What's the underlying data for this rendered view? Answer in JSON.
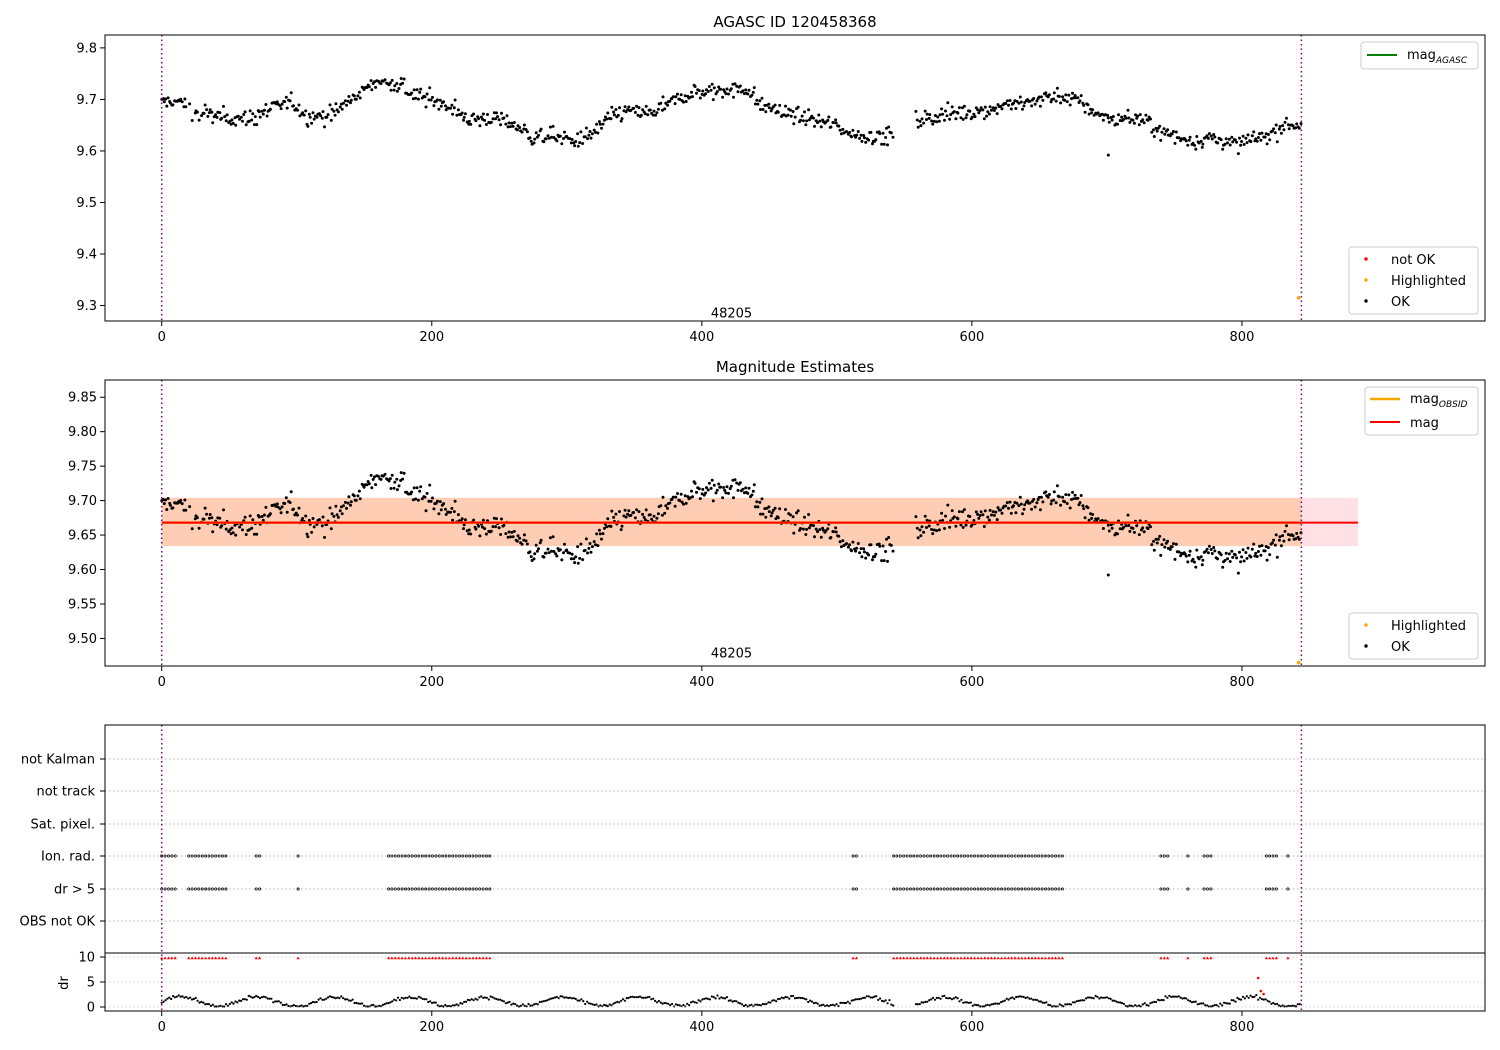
{
  "chart_data": [
    {
      "type": "scatter",
      "title": "AGASC ID 120458368",
      "xlim": [
        -42,
        980
      ],
      "ylim": [
        9.27,
        9.825
      ],
      "xticks": [
        0,
        200,
        400,
        600,
        800
      ],
      "yticks": [
        9.3,
        9.4,
        9.5,
        9.6,
        9.7,
        9.8
      ],
      "vlines": [
        0,
        844
      ],
      "annotation": {
        "text": "48205",
        "x": 422,
        "y": 9.285
      },
      "legend_lines": [
        {
          "label": "mag",
          "sub": "AGASC",
          "color": "#008000"
        }
      ],
      "legend_points": [
        {
          "label": "not OK",
          "color": "#ff0000"
        },
        {
          "label": "Highlighted",
          "color": "#ffa500"
        },
        {
          "label": "OK",
          "color": "#000000"
        }
      ],
      "highlighted": [
        {
          "x": 842,
          "y": 9.315
        }
      ],
      "trend": [
        [
          0,
          9.695
        ],
        [
          15,
          9.695
        ],
        [
          22,
          9.675
        ],
        [
          40,
          9.668
        ],
        [
          60,
          9.66
        ],
        [
          75,
          9.675
        ],
        [
          95,
          9.695
        ],
        [
          110,
          9.665
        ],
        [
          125,
          9.668
        ],
        [
          140,
          9.7
        ],
        [
          160,
          9.735
        ],
        [
          175,
          9.73
        ],
        [
          185,
          9.71
        ],
        [
          200,
          9.7
        ],
        [
          215,
          9.685
        ],
        [
          228,
          9.66
        ],
        [
          245,
          9.665
        ],
        [
          262,
          9.65
        ],
        [
          275,
          9.625
        ],
        [
          292,
          9.628
        ],
        [
          305,
          9.618
        ],
        [
          318,
          9.63
        ],
        [
          330,
          9.66
        ],
        [
          345,
          9.68
        ],
        [
          360,
          9.67
        ],
        [
          375,
          9.69
        ],
        [
          390,
          9.71
        ],
        [
          405,
          9.715
        ],
        [
          420,
          9.72
        ],
        [
          435,
          9.72
        ],
        [
          442,
          9.69
        ],
        [
          455,
          9.678
        ],
        [
          470,
          9.668
        ],
        [
          485,
          9.66
        ],
        [
          500,
          9.648
        ],
        [
          512,
          9.632
        ],
        [
          525,
          9.628
        ],
        [
          542,
          9.628
        ],
        [
          545,
          null
        ],
        [
          555,
          null
        ],
        [
          558,
          9.655
        ],
        [
          575,
          9.67
        ],
        [
          595,
          9.675
        ],
        [
          612,
          9.68
        ],
        [
          625,
          9.69
        ],
        [
          640,
          9.692
        ],
        [
          655,
          9.705
        ],
        [
          668,
          9.705
        ],
        [
          680,
          9.695
        ],
        [
          690,
          9.675
        ],
        [
          705,
          9.66
        ],
        [
          718,
          9.665
        ],
        [
          730,
          9.655
        ],
        [
          738,
          9.64
        ],
        [
          752,
          9.625
        ],
        [
          765,
          9.62
        ],
        [
          780,
          9.625
        ],
        [
          795,
          9.612
        ],
        [
          808,
          9.622
        ],
        [
          820,
          9.628
        ],
        [
          830,
          9.648
        ],
        [
          844,
          9.65
        ]
      ],
      "outliers": [
        [
          701,
          9.592
        ]
      ]
    },
    {
      "type": "scatter",
      "title": "Magnitude Estimates",
      "xlim": [
        -42,
        980
      ],
      "ylim": [
        9.46,
        9.875
      ],
      "xticks": [
        0,
        200,
        400,
        600,
        800
      ],
      "yticks": [
        9.5,
        9.55,
        9.6,
        9.65,
        9.7,
        9.75,
        9.8,
        9.85
      ],
      "vlines": [
        0,
        844
      ],
      "annotation": {
        "text": "48205",
        "x": 422,
        "y": 9.478
      },
      "mag": 9.668,
      "mag_band": [
        9.634,
        9.704
      ],
      "mag_line_end": 886,
      "legend_lines": [
        {
          "label": "mag",
          "sub": "OBSID",
          "color": "#ffa500"
        },
        {
          "label": "mag",
          "sub": "",
          "color": "#ff0000"
        }
      ],
      "legend_points": [
        {
          "label": "Highlighted",
          "color": "#ffa500"
        },
        {
          "label": "OK",
          "color": "#000000"
        }
      ],
      "highlighted": [
        {
          "x": 842,
          "y": 9.465
        }
      ]
    },
    {
      "type": "scatter",
      "title": "",
      "xlim": [
        -42,
        980
      ],
      "xticks": [
        0,
        200,
        400,
        600,
        800
      ],
      "flag_labels": [
        "not Kalman",
        "not track",
        "Sat. pixel.",
        "Ion. rad.",
        "dr > 5",
        "OBS not OK"
      ],
      "flag_ranges": [
        [
          0,
          12
        ],
        [
          20,
          48
        ],
        [
          70,
          73
        ],
        [
          101,
          101
        ],
        [
          168,
          244
        ],
        [
          512,
          516
        ],
        [
          542,
          667
        ],
        [
          740,
          746
        ],
        [
          760,
          760
        ],
        [
          772,
          778
        ],
        [
          818,
          826
        ],
        [
          834,
          834
        ]
      ],
      "flagged_rows": [
        "Ion. rad.",
        "dr > 5"
      ],
      "dr_ylabel": "dr",
      "dr_yticks": [
        0,
        5,
        10
      ],
      "dr_ylim": [
        -0.8,
        10.8
      ],
      "dr_flag_level": 9.8,
      "dr_spikes": [
        [
          812,
          5.8
        ],
        [
          814,
          3.2
        ],
        [
          816,
          2.6
        ]
      ],
      "vlines": [
        0,
        844
      ]
    }
  ]
}
